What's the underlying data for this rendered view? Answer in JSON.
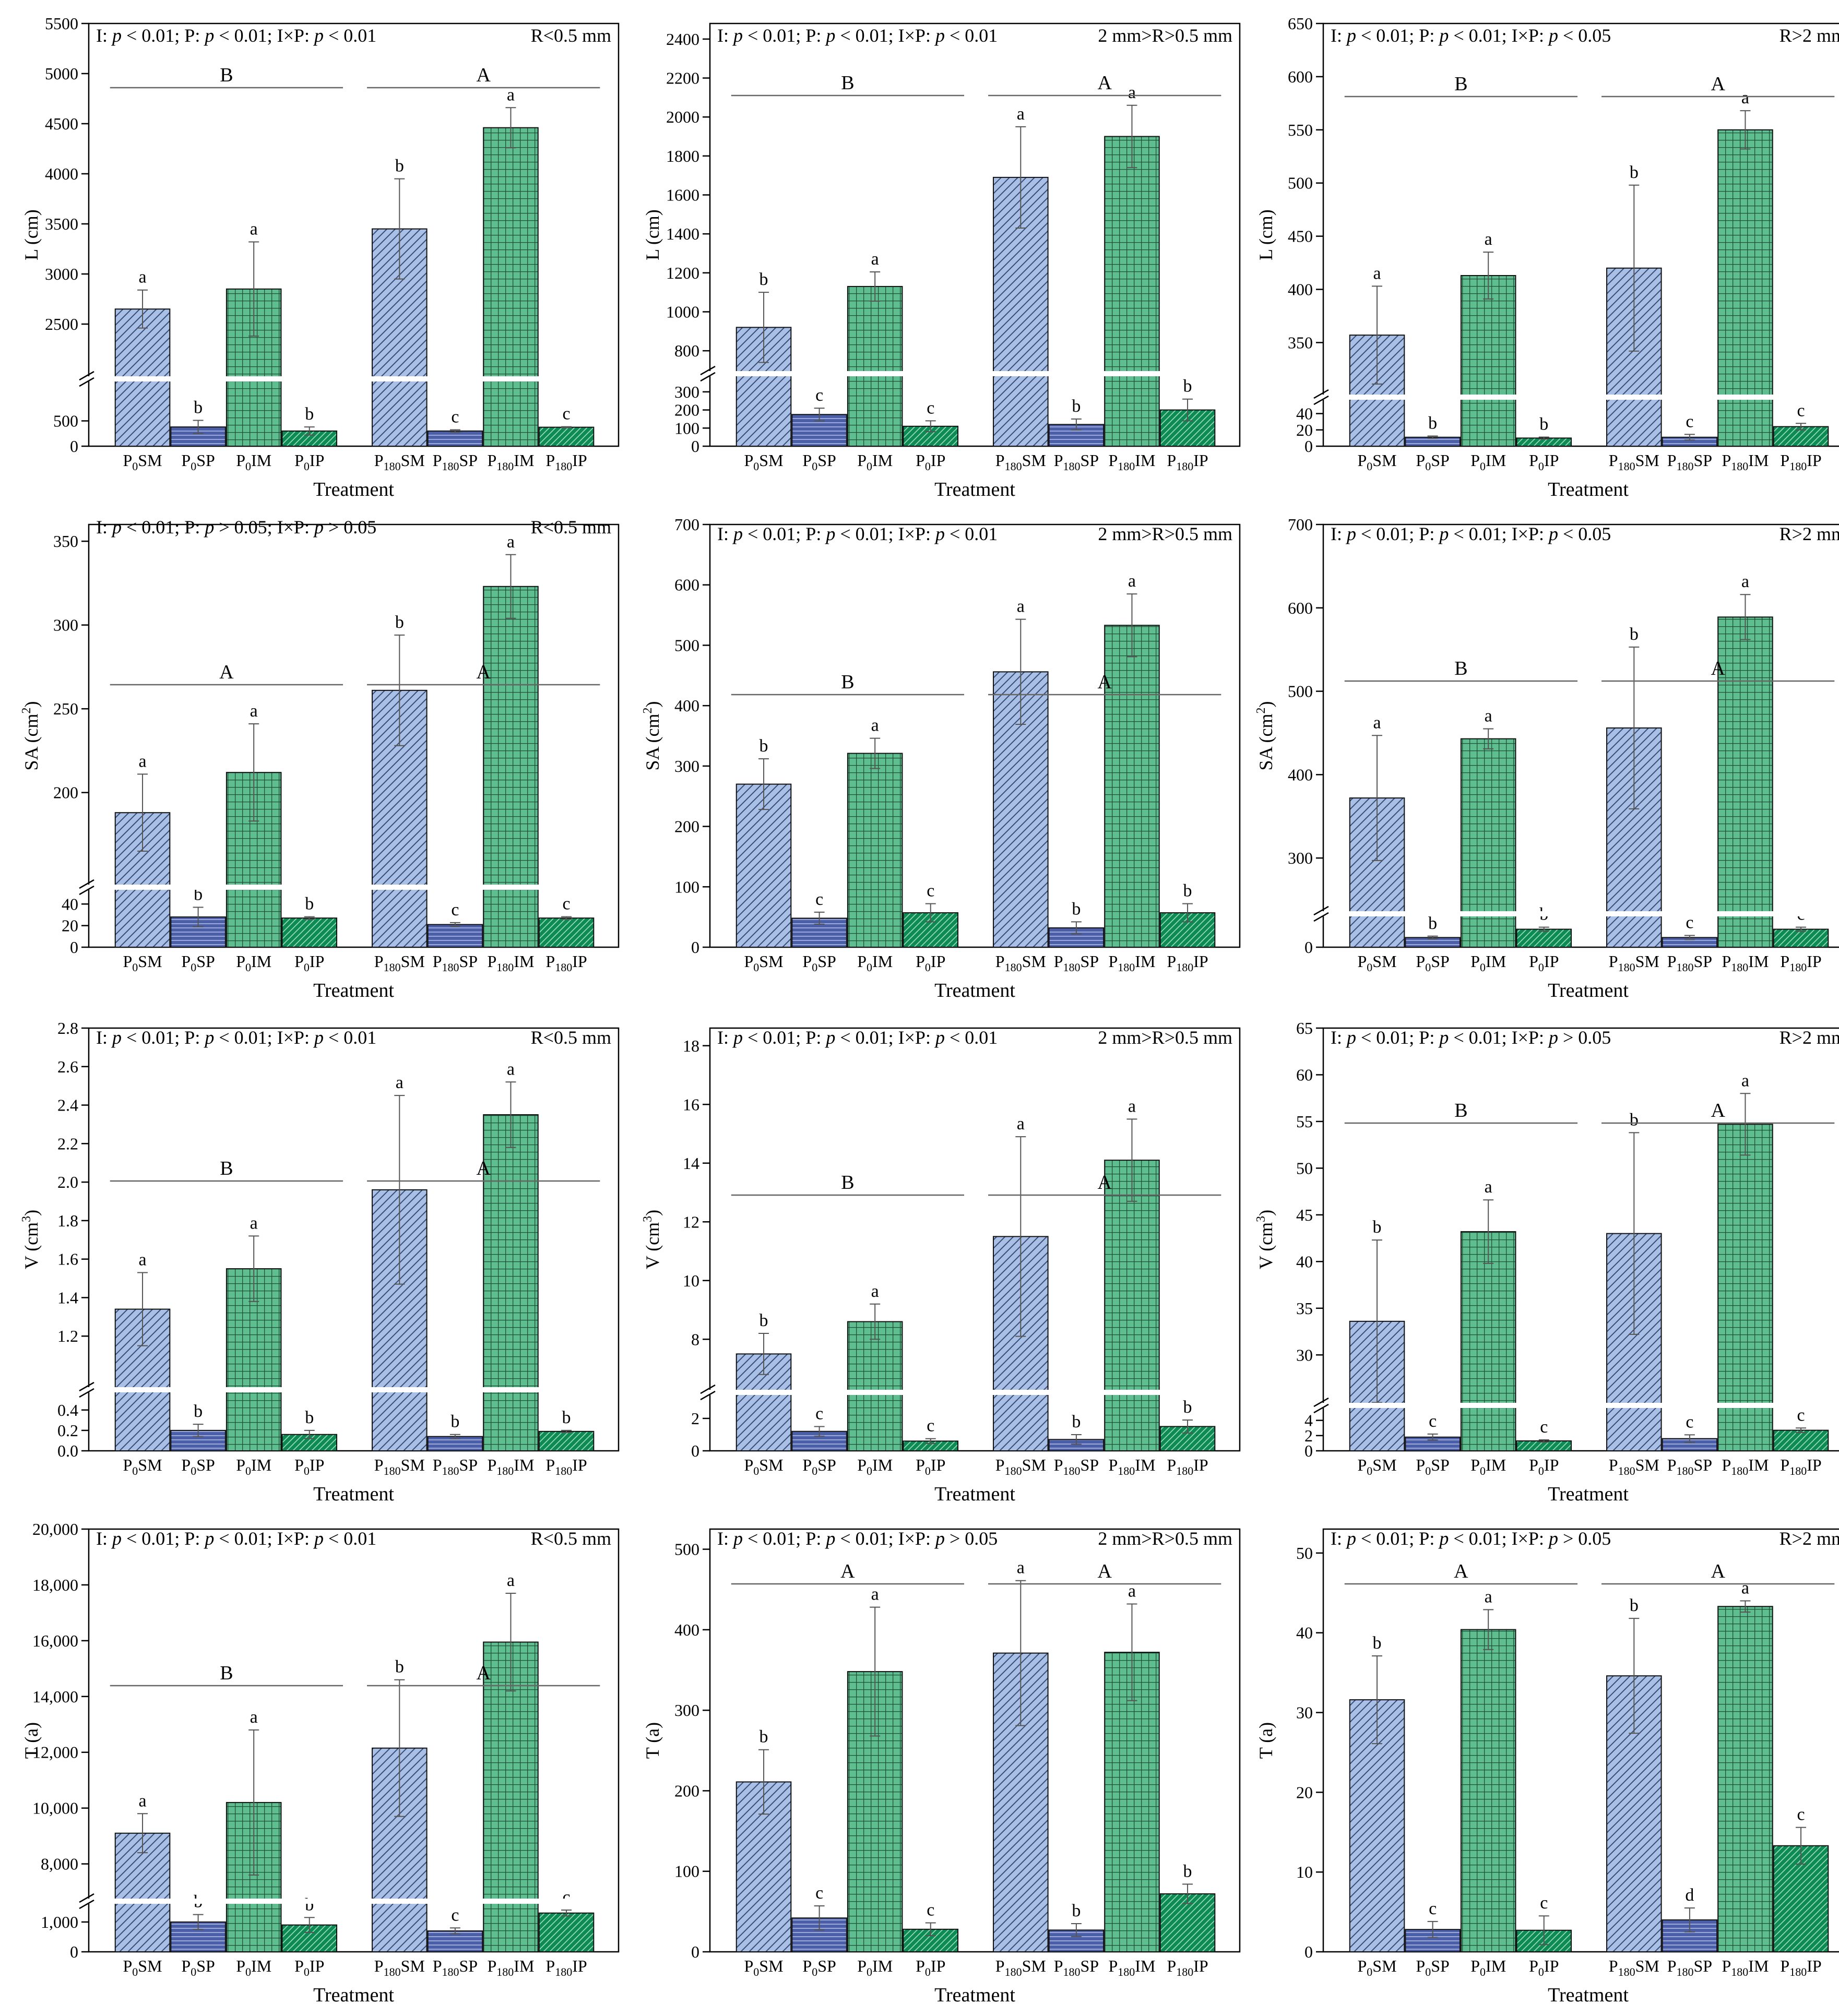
{
  "x_axis_label": "Treatment",
  "categories": [
    "P0SM",
    "P0SP",
    "P0IM",
    "P0IP",
    "P180SM",
    "P180SP",
    "P180IM",
    "P180IP"
  ],
  "colors": {
    "SM": "#a9c0e6",
    "SP": "#4b5fa8",
    "IM": "#5fbe8f",
    "IP": "#0e8a55"
  },
  "chart_data": [
    {
      "type": "bar",
      "panel": "a1",
      "ylabel": "L (cm)",
      "yunit_sup": "",
      "stat": [
        [
          "I: ",
          "p",
          " < 0.01; P: ",
          "p",
          " < 0.01; I×P: ",
          "p",
          " < 0.01"
        ]
      ],
      "range_label": "R<0.5 mm",
      "values": [
        2650,
        380,
        2850,
        300,
        3450,
        300,
        4460,
        375
      ],
      "errors": [
        190,
        130,
        470,
        80,
        500,
        25,
        200,
        10
      ],
      "letters": [
        "a",
        "b",
        "a",
        "b",
        "b",
        "c",
        "a",
        "c"
      ],
      "groups": [
        "B",
        "A"
      ],
      "low_ticks": [
        "0",
        "500"
      ],
      "high_ticks": [
        "2500",
        "3000",
        "3500",
        "4000",
        "4500",
        "5000",
        "5500"
      ]
    },
    {
      "type": "bar",
      "panel": "a2",
      "ylabel": "L (cm)",
      "yunit_sup": "",
      "stat": [
        [
          "I: ",
          "p",
          " < 0.01; P: ",
          "p",
          " < 0.01; I×P: ",
          "p",
          " < 0.01"
        ]
      ],
      "range_label": "2 mm>R>0.5 mm",
      "values": [
        920,
        175,
        1130,
        110,
        1690,
        120,
        1900,
        200
      ],
      "errors": [
        180,
        35,
        75,
        30,
        260,
        30,
        160,
        60
      ],
      "letters": [
        "b",
        "c",
        "a",
        "c",
        "a",
        "b",
        "a",
        "b"
      ],
      "groups": [
        "B",
        "A"
      ],
      "low_ticks": [
        "0",
        "100",
        "200",
        "300"
      ],
      "high_ticks": [
        "800",
        "1000",
        "1200",
        "1400",
        "1600",
        "1800",
        "2000",
        "2200",
        "2400"
      ]
    },
    {
      "type": "bar",
      "panel": "a3",
      "ylabel": "L (cm)",
      "yunit_sup": "",
      "stat": [
        [
          "I: ",
          "p",
          " < 0.01; P: ",
          "p",
          " < 0.01; I×P: ",
          "p",
          " < 0.05"
        ]
      ],
      "range_label": "R>2 mm",
      "values": [
        357,
        11,
        413,
        10,
        420,
        11,
        550,
        24
      ],
      "errors": [
        46,
        1.5,
        22,
        1.2,
        78,
        3.5,
        18,
        4
      ],
      "letters": [
        "a",
        "b",
        "a",
        "b",
        "b",
        "c",
        "a",
        "c"
      ],
      "groups": [
        "B",
        "A"
      ],
      "low_ticks": [
        "0",
        "20",
        "40"
      ],
      "high_ticks": [
        "350",
        "400",
        "450",
        "500",
        "550",
        "600",
        "650"
      ]
    },
    {
      "type": "bar",
      "panel": "b1",
      "ylabel": "SA (cm",
      "yunit_sup": "2",
      "stat": [
        [
          "I: ",
          "p",
          " < 0.01; P: ",
          "p",
          " > 0.05; I×P: ",
          "p",
          " > 0.05"
        ]
      ],
      "range_label": "R<0.5 mm",
      "values": [
        188,
        28,
        212,
        27,
        261,
        21,
        323,
        27
      ],
      "errors": [
        23,
        9,
        29,
        1.2,
        33,
        1.8,
        19,
        1.2
      ],
      "letters": [
        "a",
        "b",
        "a",
        "b",
        "b",
        "c",
        "a",
        "c"
      ],
      "groups": [
        "A",
        "A"
      ],
      "low_ticks": [
        "0",
        "20",
        "40"
      ],
      "high_ticks": [
        "200",
        "250",
        "300",
        "350"
      ]
    },
    {
      "type": "bar",
      "panel": "b2",
      "ylabel": "SA (cm",
      "yunit_sup": "2",
      "stat": [
        [
          "I: ",
          "p",
          " < 0.01; P: ",
          "p",
          " < 0.01; I×P: ",
          "p",
          " < 0.01"
        ]
      ],
      "range_label": "2 mm>R>0.5 mm",
      "values": [
        270,
        48,
        321,
        57,
        456,
        32,
        533,
        57
      ],
      "errors": [
        42,
        10,
        25,
        15,
        87,
        10,
        52,
        15
      ],
      "letters": [
        "b",
        "c",
        "a",
        "c",
        "a",
        "b",
        "a",
        "b"
      ],
      "groups": [
        "B",
        "A"
      ],
      "low_ticks": [],
      "high_ticks": [
        "0",
        "100",
        "200",
        "300",
        "400",
        "500",
        "600",
        "700"
      ]
    },
    {
      "type": "bar",
      "panel": "b3",
      "ylabel": "SA (cm",
      "yunit_sup": "2",
      "stat": [
        [
          "I: ",
          "p",
          " < 0.01; P: ",
          "p",
          " < 0.01; I×P: ",
          "p",
          " < 0.05"
        ]
      ],
      "range_label": "R>2 mm",
      "values": [
        372,
        14,
        443,
        26,
        456,
        14,
        589,
        26
      ],
      "errors": [
        75,
        2,
        12,
        3,
        97,
        3,
        27,
        3
      ],
      "letters": [
        "a",
        "b",
        "a",
        "b",
        "b",
        "c",
        "a",
        "c"
      ],
      "groups": [
        "B",
        "A"
      ],
      "low_ticks": [
        "0"
      ],
      "high_ticks": [
        "300",
        "400",
        "500",
        "600",
        "700"
      ]
    },
    {
      "type": "bar",
      "panel": "c1",
      "ylabel": "V (cm",
      "yunit_sup": "3",
      "stat": [
        [
          "I: ",
          "p",
          " < 0.01; P: ",
          "p",
          " < 0.01; I×P: ",
          "p",
          " < 0.01"
        ]
      ],
      "range_label": "R<0.5 mm",
      "values": [
        1.34,
        0.2,
        1.55,
        0.16,
        1.96,
        0.14,
        2.35,
        0.19
      ],
      "errors": [
        0.19,
        0.06,
        0.17,
        0.04,
        0.49,
        0.02,
        0.17,
        0.01
      ],
      "letters": [
        "a",
        "b",
        "a",
        "b",
        "a",
        "b",
        "a",
        "b"
      ],
      "groups": [
        "B",
        "A"
      ],
      "low_ticks": [
        "0.0",
        "0.2",
        "0.4"
      ],
      "high_ticks": [
        "1.2",
        "1.4",
        "1.6",
        "1.8",
        "2.0",
        "2.2",
        "2.4",
        "2.6",
        "2.8"
      ]
    },
    {
      "type": "bar",
      "panel": "c2",
      "ylabel": "V (cm",
      "yunit_sup": "3",
      "stat": [
        [
          "I: ",
          "p",
          " < 0.01; P: ",
          "p",
          " < 0.01; I×P: ",
          "p",
          " < 0.01"
        ]
      ],
      "range_label": "2 mm>R>0.5 mm",
      "values": [
        7.5,
        1.2,
        8.6,
        0.6,
        11.5,
        0.7,
        14.1,
        1.5
      ],
      "errors": [
        0.7,
        0.3,
        0.6,
        0.15,
        3.4,
        0.3,
        1.4,
        0.4
      ],
      "letters": [
        "b",
        "c",
        "a",
        "c",
        "a",
        "b",
        "a",
        "b"
      ],
      "groups": [
        "B",
        "A"
      ],
      "low_ticks": [
        "0",
        "2"
      ],
      "high_ticks": [
        "8",
        "10",
        "12",
        "14",
        "16",
        "18"
      ]
    },
    {
      "type": "bar",
      "panel": "c3",
      "ylabel": "V (cm",
      "yunit_sup": "3",
      "stat": [
        [
          "I: ",
          "p",
          " < 0.01; P: ",
          "p",
          " < 0.01; I×P: ",
          "p",
          " > 0.05"
        ]
      ],
      "range_label": "R>2 mm",
      "values": [
        33.6,
        1.8,
        43.2,
        1.3,
        43.0,
        1.6,
        54.7,
        2.7
      ],
      "errors": [
        8.7,
        0.4,
        3.4,
        0.15,
        10.8,
        0.5,
        3.3,
        0.3
      ],
      "letters": [
        "b",
        "c",
        "a",
        "c",
        "b",
        "c",
        "a",
        "c"
      ],
      "groups": [
        "B",
        "A"
      ],
      "low_ticks": [
        "0",
        "2",
        "4"
      ],
      "high_ticks": [
        "30",
        "35",
        "40",
        "45",
        "50",
        "55",
        "60",
        "65"
      ]
    },
    {
      "type": "bar",
      "panel": "d1",
      "ylabel": "T (a)",
      "yunit_sup": "",
      "stat": [
        [
          "I: ",
          "p",
          " < 0.01; P: ",
          "p",
          " < 0.01; I×P: ",
          "p",
          " < 0.01"
        ]
      ],
      "range_label": "R<0.5 mm",
      "values": [
        9100,
        1000,
        10200,
        900,
        12150,
        700,
        15950,
        1300
      ],
      "errors": [
        700,
        250,
        2600,
        250,
        2450,
        100,
        1750,
        100
      ],
      "letters": [
        "a",
        "b",
        "a",
        "b",
        "b",
        "c",
        "a",
        "c"
      ],
      "groups": [
        "B",
        "A"
      ],
      "low_ticks": [
        "0",
        "1,000"
      ],
      "high_ticks": [
        "8,000",
        "10,000",
        "12,000",
        "14,000",
        "16,000",
        "18,000",
        "20,000"
      ]
    },
    {
      "type": "bar",
      "panel": "d2",
      "ylabel": "T (a)",
      "yunit_sup": "",
      "stat": [
        [
          "I: ",
          "p",
          " < 0.01; P: ",
          "p",
          " < 0.01; I×P: ",
          "p",
          " > 0.05"
        ]
      ],
      "range_label": "2 mm>R>0.5 mm",
      "values": [
        211,
        42,
        348,
        28,
        371,
        27,
        372,
        72
      ],
      "errors": [
        40,
        15,
        80,
        8,
        90,
        8,
        60,
        12
      ],
      "letters": [
        "b",
        "c",
        "a",
        "c",
        "a",
        "b",
        "a",
        "b"
      ],
      "groups": [
        "A",
        "A"
      ],
      "low_ticks": [],
      "high_ticks": [
        "0",
        "100",
        "200",
        "300",
        "400",
        "500"
      ]
    },
    {
      "type": "bar",
      "panel": "d3",
      "ylabel": "T (a)",
      "yunit_sup": "",
      "stat": [
        [
          "I: ",
          "p",
          " < 0.01; P: ",
          "p",
          " < 0.01; I×P: ",
          "p",
          " > 0.05"
        ]
      ],
      "range_label": "R>2 mm",
      "values": [
        31.6,
        2.8,
        40.4,
        2.7,
        34.6,
        4.0,
        43.3,
        13.3
      ],
      "errors": [
        5.5,
        1.0,
        2.5,
        1.8,
        7.2,
        1.5,
        0.7,
        2.3
      ],
      "letters": [
        "b",
        "c",
        "a",
        "c",
        "b",
        "d",
        "a",
        "c"
      ],
      "groups": [
        "A",
        "A"
      ],
      "low_ticks": [],
      "high_ticks": [
        "0",
        "10",
        "20",
        "30",
        "40",
        "50"
      ]
    }
  ]
}
